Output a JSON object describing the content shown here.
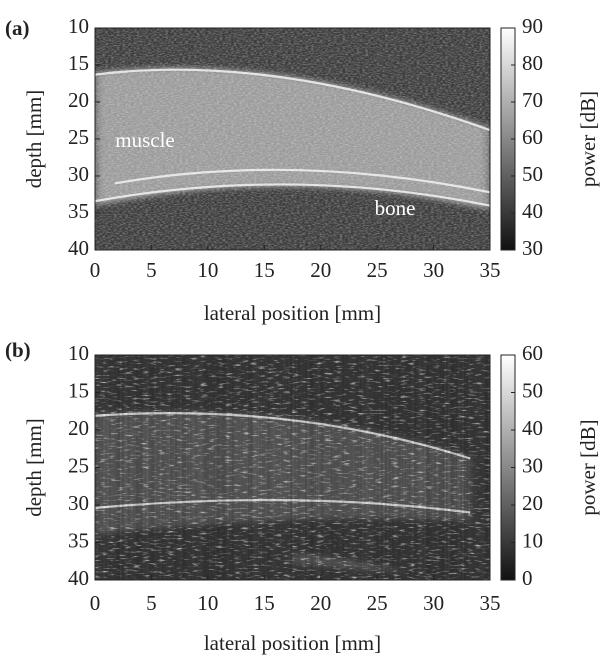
{
  "chart_data": [
    {
      "type": "heatmap",
      "panel_label": "(a)",
      "x_label": "lateral position [mm]",
      "y_label": "depth [mm]",
      "xlim": [
        0,
        35
      ],
      "xticks": [
        0,
        5,
        10,
        15,
        20,
        25,
        30,
        35
      ],
      "ylim": [
        10,
        40
      ],
      "yticks": [
        10,
        15,
        20,
        25,
        30,
        35,
        40
      ],
      "y_inverted": true,
      "colorbar": {
        "label": "power [dB]",
        "lim": [
          30,
          90
        ],
        "ticks": [
          30,
          40,
          50,
          60,
          70,
          80,
          90
        ]
      },
      "annotations": [
        "muscle",
        "bone"
      ]
    },
    {
      "type": "heatmap",
      "panel_label": "(b)",
      "x_label": "lateral position [mm]",
      "y_label": "depth [mm]",
      "xlim": [
        0,
        35
      ],
      "xticks": [
        0,
        5,
        10,
        15,
        20,
        25,
        30,
        35
      ],
      "ylim": [
        10,
        40
      ],
      "yticks": [
        10,
        15,
        20,
        25,
        30,
        35,
        40
      ],
      "y_inverted": true,
      "colorbar": {
        "label": "power [dB]",
        "lim": [
          0,
          60
        ],
        "ticks": [
          0,
          10,
          20,
          30,
          40,
          50,
          60
        ]
      }
    }
  ]
}
